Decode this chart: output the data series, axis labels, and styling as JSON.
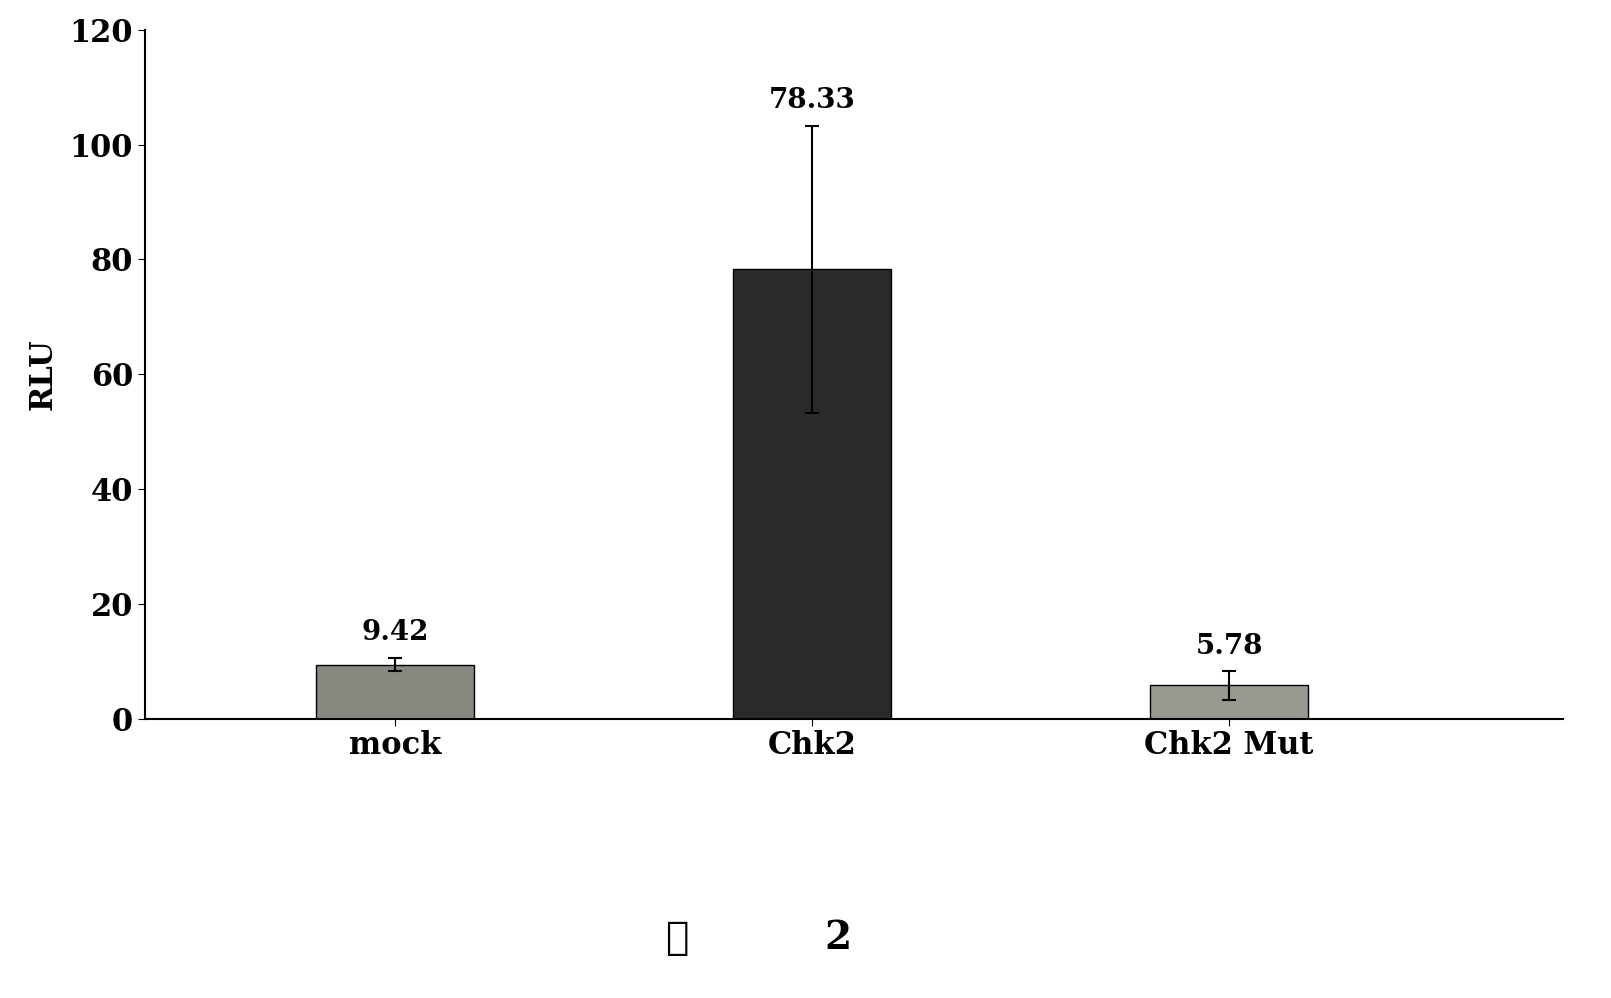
{
  "categories": [
    "mock",
    "Chk2",
    "Chk2 Mut"
  ],
  "values": [
    9.42,
    78.33,
    5.78
  ],
  "errors": [
    1.2,
    25.0,
    2.5
  ],
  "bar_colors": [
    "#888880",
    "#2a2a2a",
    "#999990"
  ],
  "bar_width": 0.38,
  "ylabel": "RLU",
  "ylim": [
    0,
    120
  ],
  "yticks": [
    0,
    20,
    40,
    60,
    80,
    100,
    120
  ],
  "value_labels": [
    "9.42",
    "78.33",
    "5.78"
  ],
  "caption_char": "图",
  "caption_num": "2",
  "label_fontsize": 22,
  "tick_fontsize": 22,
  "annotation_fontsize": 20,
  "caption_fontsize": 28,
  "background_color": "#ffffff"
}
